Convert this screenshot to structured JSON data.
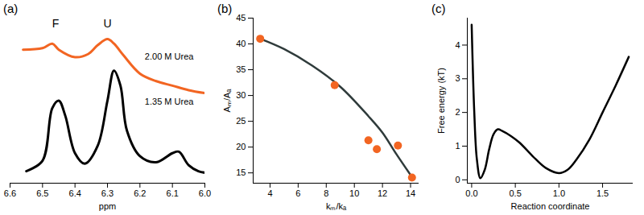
{
  "chart_data": [
    {
      "type": "line",
      "title": "(a)",
      "x_label": "ppm",
      "xlim": [
        6.6,
        6.0
      ],
      "xticks": [
        6.6,
        6.5,
        6.4,
        6.3,
        6.2,
        6.1,
        {
          "value": 6.0,
          "label": "6.0"
        }
      ],
      "ylim": [
        0,
        11
      ],
      "tick_labels": "x",
      "series": [
        {
          "color": "#f26522",
          "x": [
            6.56,
            6.5,
            6.47,
            6.45,
            6.4,
            6.36,
            6.33,
            6.3,
            6.28,
            6.25,
            6.2,
            6.15,
            6.1,
            6.05,
            6.0
          ],
          "values": [
            8.9,
            9.0,
            9.3,
            8.9,
            8.4,
            8.6,
            9.2,
            9.6,
            9.3,
            8.5,
            7.3,
            6.8,
            6.5,
            6.2,
            6.0
          ]
        },
        {
          "color": "#000000",
          "x": [
            6.55,
            6.5,
            6.47,
            6.45,
            6.43,
            6.4,
            6.37,
            6.33,
            6.3,
            6.28,
            6.26,
            6.24,
            6.2,
            6.15,
            6.1,
            6.08,
            6.05,
            6.02,
            6.0
          ],
          "values": [
            0.8,
            1.5,
            5.0,
            5.5,
            4.5,
            2.0,
            1.3,
            2.5,
            5.5,
            7.5,
            6.5,
            3.5,
            1.8,
            1.4,
            2.0,
            2.1,
            1.2,
            0.8,
            0.7
          ]
        }
      ],
      "annotations": [
        {
          "text": "F",
          "x": 6.46,
          "y": 10.6
        },
        {
          "text": "U",
          "x": 6.3,
          "y": 10.6
        },
        {
          "text": "2.00 M Urea",
          "x": 6.11,
          "y": 8.4
        },
        {
          "text": "1.35 M Urea",
          "x": 6.11,
          "y": 5.4
        }
      ]
    },
    {
      "type": "scatter",
      "title": "(b)",
      "x_label": "kₘ/kₐ",
      "y_label": "Aₘ/Aₐ",
      "xlim": [
        2.8,
        14.6
      ],
      "xticks": [
        4,
        6,
        8,
        10,
        12,
        14
      ],
      "ylim": [
        13,
        45
      ],
      "yticks": [
        15,
        20,
        25,
        30,
        35,
        40,
        45
      ],
      "series": [
        {
          "type": "line",
          "color": "#2f3b3b",
          "x": [
            3.3,
            5,
            7,
            9,
            11,
            12,
            13,
            14.2
          ],
          "values": [
            41,
            39,
            35.8,
            31.7,
            26,
            22.8,
            18.6,
            13.8
          ]
        },
        {
          "type": "scatter",
          "color": "#f26522",
          "x": [
            3.3,
            8.6,
            11,
            11.6,
            13.1,
            14.1
          ],
          "values": [
            41,
            32,
            21.3,
            19.6,
            20.3,
            14.1
          ]
        }
      ]
    },
    {
      "type": "line",
      "title": "(c)",
      "x_label": "Reaction coordinate",
      "y_label": "Free energy (kT)",
      "xlim": [
        -0.05,
        1.85
      ],
      "xticks": [
        {
          "value": 0,
          "label": "0.0"
        },
        0.5,
        {
          "value": 1,
          "label": "1.0"
        },
        1.5
      ],
      "ylim": [
        -0.1,
        4.8
      ],
      "yticks": [
        0,
        1,
        2,
        3,
        4
      ],
      "series": [
        {
          "color": "#000000",
          "x": [
            0.0,
            0.03,
            0.06,
            0.1,
            0.15,
            0.2,
            0.25,
            0.3,
            0.35,
            0.45,
            0.55,
            0.7,
            0.85,
            1.0,
            1.1,
            1.2,
            1.35,
            1.5,
            1.65,
            1.8
          ],
          "values": [
            4.6,
            2.0,
            0.6,
            0.05,
            0.3,
            0.9,
            1.35,
            1.5,
            1.45,
            1.3,
            1.1,
            0.7,
            0.35,
            0.2,
            0.3,
            0.6,
            1.2,
            2.0,
            2.8,
            3.65
          ]
        }
      ]
    }
  ]
}
